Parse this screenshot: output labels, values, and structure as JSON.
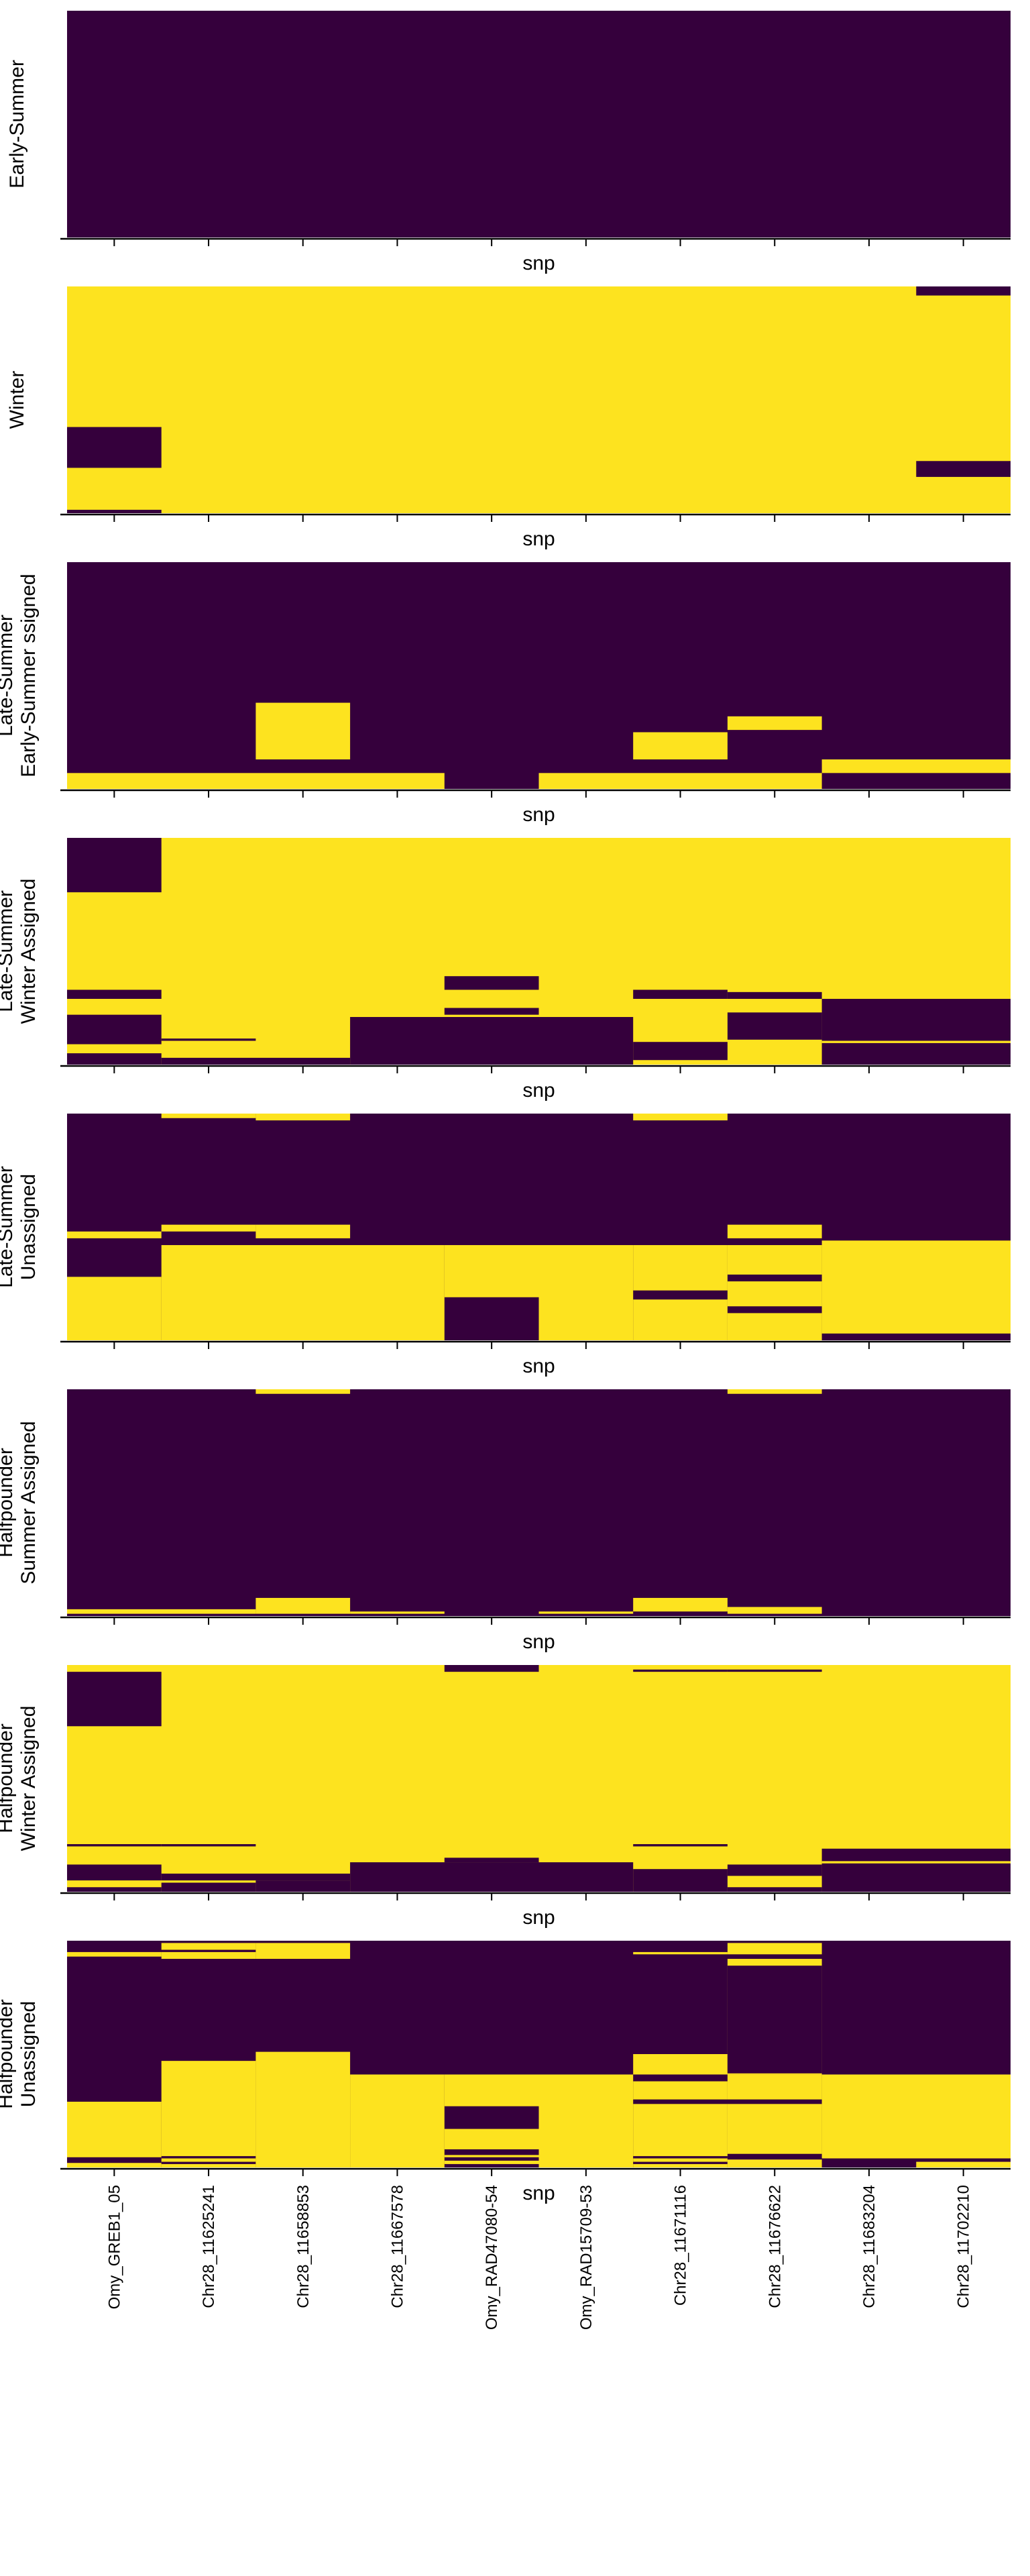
{
  "colors": {
    "low": "#35003c",
    "high": "#fde31f",
    "axis": "#000000",
    "background": "#ffffff"
  },
  "chart_data": {
    "type": "heatmap",
    "colormap": "viridis (binary: dark purple / yellow)",
    "snps": [
      "Omy_GREB1_05",
      "Chr28_11625241",
      "Chr28_11658853",
      "Chr28_11667578",
      "Omy_RAD47080-54",
      "Omy_RAD15709-53",
      "Chr28_11671116",
      "Chr28_11676622",
      "Chr28_11683204",
      "Chr28_11702210"
    ],
    "xlabel": "snp",
    "panels": [
      {
        "ylabel": [
          "Early-Summer"
        ],
        "base": "low",
        "blocks": []
      },
      {
        "ylabel": [
          "Winter"
        ],
        "base": "high",
        "blocks": [
          {
            "c0": 0,
            "c1": 0,
            "r0": 0.62,
            "r1": 0.8,
            "v": "low"
          },
          {
            "c0": 0,
            "c1": 0,
            "r0": 0.985,
            "r1": 1.0,
            "v": "low"
          },
          {
            "c0": 9,
            "c1": 9,
            "r0": 0.0,
            "r1": 0.04,
            "v": "low"
          },
          {
            "c0": 9,
            "c1": 9,
            "r0": 0.77,
            "r1": 0.84,
            "v": "low"
          }
        ]
      },
      {
        "ylabel": [
          "Late-Summer",
          "Early-Summer ssigned"
        ],
        "base": "low",
        "blocks": [
          {
            "c0": 2,
            "c1": 2,
            "r0": 0.62,
            "r1": 0.87,
            "v": "high"
          },
          {
            "c0": 6,
            "c1": 6,
            "r0": 0.75,
            "r1": 0.87,
            "v": "high"
          },
          {
            "c0": 7,
            "c1": 7,
            "r0": 0.68,
            "r1": 0.74,
            "v": "high"
          },
          {
            "c0": 0,
            "c1": 3,
            "r0": 0.93,
            "r1": 1.0,
            "v": "high"
          },
          {
            "c0": 5,
            "c1": 7,
            "r0": 0.93,
            "r1": 1.0,
            "v": "high"
          },
          {
            "c0": 8,
            "c1": 9,
            "r0": 0.87,
            "r1": 0.93,
            "v": "high"
          }
        ]
      },
      {
        "ylabel": [
          "Late-Summer",
          "Winter Assigned"
        ],
        "base": "high",
        "blocks": [
          {
            "c0": 0,
            "c1": 0,
            "r0": 0.0,
            "r1": 0.24,
            "v": "low"
          },
          {
            "c0": 0,
            "c1": 0,
            "r0": 0.67,
            "r1": 0.71,
            "v": "low"
          },
          {
            "c0": 0,
            "c1": 0,
            "r0": 0.78,
            "r1": 0.91,
            "v": "low"
          },
          {
            "c0": 0,
            "c1": 0,
            "r0": 0.95,
            "r1": 1.0,
            "v": "low"
          },
          {
            "c0": 1,
            "c1": 1,
            "r0": 0.885,
            "r1": 0.895,
            "v": "low"
          },
          {
            "c0": 1,
            "c1": 2,
            "r0": 0.97,
            "r1": 1.0,
            "v": "low"
          },
          {
            "c0": 3,
            "c1": 5,
            "r0": 0.79,
            "r1": 1.0,
            "v": "low"
          },
          {
            "c0": 4,
            "c1": 4,
            "r0": 0.61,
            "r1": 0.67,
            "v": "low"
          },
          {
            "c0": 4,
            "c1": 4,
            "r0": 0.75,
            "r1": 0.78,
            "v": "low"
          },
          {
            "c0": 6,
            "c1": 6,
            "r0": 0.67,
            "r1": 0.71,
            "v": "low"
          },
          {
            "c0": 6,
            "c1": 6,
            "r0": 0.9,
            "r1": 0.98,
            "v": "low"
          },
          {
            "c0": 7,
            "c1": 7,
            "r0": 0.68,
            "r1": 0.71,
            "v": "low"
          },
          {
            "c0": 7,
            "c1": 7,
            "r0": 0.77,
            "r1": 0.89,
            "v": "low"
          },
          {
            "c0": 8,
            "c1": 9,
            "r0": 0.71,
            "r1": 1.0,
            "v": "low"
          },
          {
            "c0": 8,
            "c1": 9,
            "r0": 0.895,
            "r1": 0.905,
            "v": "high"
          }
        ]
      },
      {
        "ylabel": [
          "Late-Summer",
          "Unassigned"
        ],
        "base": "low",
        "blocks": [
          {
            "c0": 0,
            "c1": 0,
            "r0": 0.52,
            "r1": 0.55,
            "v": "high"
          },
          {
            "c0": 0,
            "c1": 0,
            "r0": 0.72,
            "r1": 1.0,
            "v": "high"
          },
          {
            "c0": 1,
            "c1": 1,
            "r0": 0.0,
            "r1": 0.02,
            "v": "high"
          },
          {
            "c0": 1,
            "c1": 1,
            "r0": 0.49,
            "r1": 0.52,
            "v": "high"
          },
          {
            "c0": 2,
            "c1": 2,
            "r0": 0.0,
            "r1": 0.03,
            "v": "high"
          },
          {
            "c0": 2,
            "c1": 2,
            "r0": 0.49,
            "r1": 0.55,
            "v": "high"
          },
          {
            "c0": 1,
            "c1": 3,
            "r0": 0.58,
            "r1": 1.0,
            "v": "high"
          },
          {
            "c0": 4,
            "c1": 4,
            "r0": 0.58,
            "r1": 0.81,
            "v": "high"
          },
          {
            "c0": 5,
            "c1": 5,
            "r0": 0.58,
            "r1": 1.0,
            "v": "high"
          },
          {
            "c0": 6,
            "c1": 6,
            "r0": 0.0,
            "r1": 0.03,
            "v": "high"
          },
          {
            "c0": 6,
            "c1": 6,
            "r0": 0.58,
            "r1": 0.78,
            "v": "high"
          },
          {
            "c0": 6,
            "c1": 6,
            "r0": 0.82,
            "r1": 1.0,
            "v": "high"
          },
          {
            "c0": 7,
            "c1": 7,
            "r0": 0.49,
            "r1": 0.55,
            "v": "high"
          },
          {
            "c0": 7,
            "c1": 7,
            "r0": 0.58,
            "r1": 0.71,
            "v": "high"
          },
          {
            "c0": 7,
            "c1": 7,
            "r0": 0.74,
            "r1": 0.85,
            "v": "high"
          },
          {
            "c0": 7,
            "c1": 7,
            "r0": 0.88,
            "r1": 1.0,
            "v": "high"
          },
          {
            "c0": 8,
            "c1": 9,
            "r0": 0.56,
            "r1": 0.97,
            "v": "high"
          }
        ]
      },
      {
        "ylabel": [
          "Halfpounder",
          "Summer Assigned"
        ],
        "base": "low",
        "blocks": [
          {
            "c0": 0,
            "c1": 1,
            "r0": 0.97,
            "r1": 0.99,
            "v": "high"
          },
          {
            "c0": 2,
            "c1": 2,
            "r0": 0.0,
            "r1": 0.02,
            "v": "high"
          },
          {
            "c0": 2,
            "c1": 2,
            "r0": 0.92,
            "r1": 0.99,
            "v": "high"
          },
          {
            "c0": 3,
            "c1": 3,
            "r0": 0.98,
            "r1": 0.99,
            "v": "high"
          },
          {
            "c0": 5,
            "c1": 5,
            "r0": 0.98,
            "r1": 0.99,
            "v": "high"
          },
          {
            "c0": 6,
            "c1": 6,
            "r0": 0.92,
            "r1": 0.98,
            "v": "high"
          },
          {
            "c0": 7,
            "c1": 7,
            "r0": 0.0,
            "r1": 0.02,
            "v": "high"
          },
          {
            "c0": 7,
            "c1": 7,
            "r0": 0.96,
            "r1": 0.99,
            "v": "high"
          }
        ]
      },
      {
        "ylabel": [
          "Halfpounder",
          "Winter Assigned"
        ],
        "base": "high",
        "blocks": [
          {
            "c0": 0,
            "c1": 0,
            "r0": 0.03,
            "r1": 0.27,
            "v": "low"
          },
          {
            "c0": 0,
            "c1": 0,
            "r0": 0.79,
            "r1": 0.8,
            "v": "low"
          },
          {
            "c0": 0,
            "c1": 0,
            "r0": 0.88,
            "r1": 0.95,
            "v": "low"
          },
          {
            "c0": 0,
            "c1": 0,
            "r0": 0.98,
            "r1": 1.0,
            "v": "low"
          },
          {
            "c0": 1,
            "c1": 1,
            "r0": 0.79,
            "r1": 0.8,
            "v": "low"
          },
          {
            "c0": 1,
            "c1": 2,
            "r0": 0.92,
            "r1": 0.95,
            "v": "low"
          },
          {
            "c0": 1,
            "c1": 1,
            "r0": 0.96,
            "r1": 1.0,
            "v": "low"
          },
          {
            "c0": 2,
            "c1": 2,
            "r0": 0.95,
            "r1": 1.0,
            "v": "low"
          },
          {
            "c0": 3,
            "c1": 5,
            "r0": 0.87,
            "r1": 1.0,
            "v": "low"
          },
          {
            "c0": 4,
            "c1": 4,
            "r0": 0.0,
            "r1": 0.03,
            "v": "low"
          },
          {
            "c0": 4,
            "c1": 4,
            "r0": 0.85,
            "r1": 0.87,
            "v": "low"
          },
          {
            "c0": 6,
            "c1": 6,
            "r0": 0.02,
            "r1": 0.03,
            "v": "low"
          },
          {
            "c0": 6,
            "c1": 6,
            "r0": 0.79,
            "r1": 0.8,
            "v": "low"
          },
          {
            "c0": 6,
            "c1": 6,
            "r0": 0.9,
            "r1": 1.0,
            "v": "low"
          },
          {
            "c0": 7,
            "c1": 7,
            "r0": 0.02,
            "r1": 0.03,
            "v": "low"
          },
          {
            "c0": 7,
            "c1": 7,
            "r0": 0.88,
            "r1": 0.93,
            "v": "low"
          },
          {
            "c0": 7,
            "c1": 7,
            "r0": 0.98,
            "r1": 1.0,
            "v": "low"
          },
          {
            "c0": 8,
            "c1": 9,
            "r0": 0.81,
            "r1": 1.0,
            "v": "low"
          },
          {
            "c0": 8,
            "c1": 9,
            "r0": 0.865,
            "r1": 0.875,
            "v": "high"
          }
        ]
      },
      {
        "ylabel": [
          "Halfpounder",
          "Unassigned"
        ],
        "base": "low",
        "blocks": [
          {
            "c0": 0,
            "c1": 0,
            "r0": 0.05,
            "r1": 0.07,
            "v": "high"
          },
          {
            "c0": 0,
            "c1": 0,
            "r0": 0.71,
            "r1": 0.955,
            "v": "high"
          },
          {
            "c0": 0,
            "c1": 0,
            "r0": 0.98,
            "r1": 1.0,
            "v": "high"
          },
          {
            "c0": 1,
            "c1": 1,
            "r0": 0.01,
            "r1": 0.04,
            "v": "high"
          },
          {
            "c0": 1,
            "c1": 1,
            "r0": 0.05,
            "r1": 0.08,
            "v": "high"
          },
          {
            "c0": 1,
            "c1": 1,
            "r0": 0.53,
            "r1": 1.0,
            "v": "high"
          },
          {
            "c0": 1,
            "c1": 1,
            "r0": 0.95,
            "r1": 0.96,
            "v": "low"
          },
          {
            "c0": 1,
            "c1": 1,
            "r0": 0.975,
            "r1": 0.985,
            "v": "low"
          },
          {
            "c0": 2,
            "c1": 2,
            "r0": 0.01,
            "r1": 0.08,
            "v": "high"
          },
          {
            "c0": 2,
            "c1": 2,
            "r0": 0.49,
            "r1": 1.0,
            "v": "high"
          },
          {
            "c0": 3,
            "c1": 3,
            "r0": 0.59,
            "r1": 1.0,
            "v": "high"
          },
          {
            "c0": 4,
            "c1": 4,
            "r0": 0.59,
            "r1": 0.73,
            "v": "high"
          },
          {
            "c0": 4,
            "c1": 4,
            "r0": 0.83,
            "r1": 0.92,
            "v": "high"
          },
          {
            "c0": 4,
            "c1": 4,
            "r0": 0.945,
            "r1": 0.955,
            "v": "high"
          },
          {
            "c0": 4,
            "c1": 4,
            "r0": 0.97,
            "r1": 0.985,
            "v": "high"
          },
          {
            "c0": 5,
            "c1": 5,
            "r0": 0.59,
            "r1": 1.0,
            "v": "high"
          },
          {
            "c0": 6,
            "c1": 6,
            "r0": 0.05,
            "r1": 0.06,
            "v": "high"
          },
          {
            "c0": 6,
            "c1": 6,
            "r0": 0.5,
            "r1": 0.59,
            "v": "high"
          },
          {
            "c0": 6,
            "c1": 6,
            "r0": 0.62,
            "r1": 0.7,
            "v": "high"
          },
          {
            "c0": 6,
            "c1": 6,
            "r0": 0.72,
            "r1": 1.0,
            "v": "high"
          },
          {
            "c0": 6,
            "c1": 6,
            "r0": 0.95,
            "r1": 0.96,
            "v": "low"
          },
          {
            "c0": 6,
            "c1": 6,
            "r0": 0.975,
            "r1": 0.985,
            "v": "low"
          },
          {
            "c0": 7,
            "c1": 7,
            "r0": 0.01,
            "r1": 0.06,
            "v": "high"
          },
          {
            "c0": 7,
            "c1": 7,
            "r0": 0.08,
            "r1": 0.59,
            "v": "high"
          },
          {
            "c0": 7,
            "c1": 7,
            "r0": 0.59,
            "r1": 0.7,
            "v": "high"
          },
          {
            "c0": 7,
            "c1": 7,
            "r0": 0.72,
            "r1": 0.94,
            "v": "high"
          },
          {
            "c0": 7,
            "c1": 7,
            "r0": 0.965,
            "r1": 1.0,
            "v": "high"
          },
          {
            "c0": 7,
            "c1": 7,
            "r0": 0.11,
            "r1": 0.585,
            "v": "low"
          },
          {
            "c0": 8,
            "c1": 9,
            "r0": 0.59,
            "r1": 0.96,
            "v": "high"
          },
          {
            "c0": 9,
            "c1": 9,
            "r0": 0.975,
            "r1": 1.0,
            "v": "high"
          }
        ]
      }
    ]
  }
}
